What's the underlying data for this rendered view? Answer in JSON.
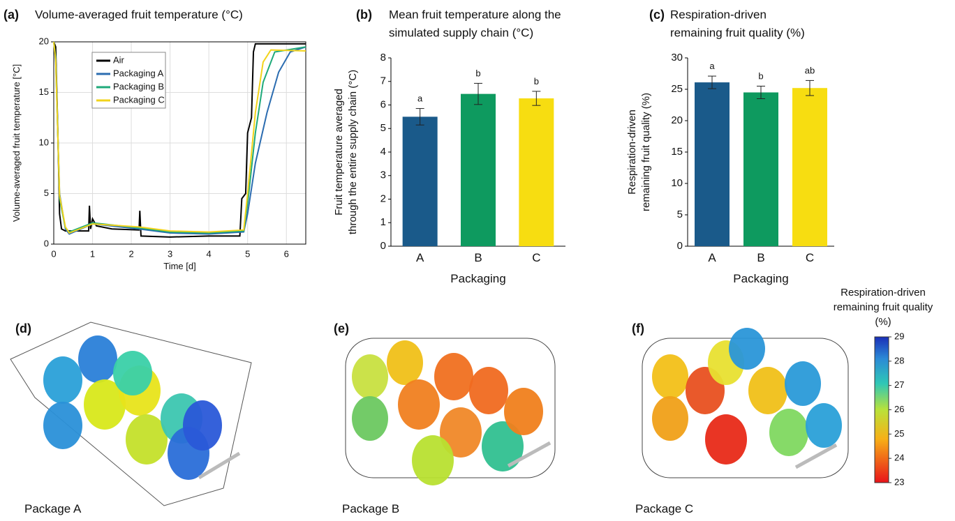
{
  "chart_data": [
    {
      "type": "line",
      "panel": "(a)",
      "title": [
        "Volume-averaged fruit temperature (°C)"
      ],
      "xlabel": "Time [d]",
      "ylabel": [
        "Volume-averaged fruit temperature [°C]"
      ],
      "xlim": [
        0,
        6.5
      ],
      "xticks": [
        0,
        1,
        2,
        3,
        4,
        5,
        6
      ],
      "ylim": [
        0,
        20
      ],
      "yticks": [
        0,
        5,
        10,
        15,
        20
      ],
      "grid": true,
      "legend": "upper left",
      "series": [
        {
          "name": "Air",
          "color": "#000000",
          "x": [
            0,
            0.05,
            0.1,
            0.15,
            0.2,
            0.3,
            0.9,
            0.92,
            0.95,
            1.0,
            1.1,
            1.5,
            2.2,
            2.22,
            2.25,
            3,
            4,
            4.8,
            4.85,
            4.95,
            5.0,
            5.1,
            5.15,
            5.2,
            6.5
          ],
          "values": [
            20,
            19.5,
            12,
            3,
            1.5,
            1.3,
            1.3,
            3.8,
            1.5,
            2.5,
            1.8,
            1.5,
            1.4,
            3.3,
            0.8,
            0.7,
            0.8,
            0.8,
            4.5,
            5,
            11,
            12.5,
            19,
            19.8,
            19.8
          ]
        },
        {
          "name": "Packaging A",
          "color": "#2b6cb0",
          "x": [
            0,
            0.05,
            0.15,
            0.3,
            0.4,
            1,
            2.2,
            3,
            4,
            4.9,
            5.0,
            5.2,
            5.5,
            5.8,
            6.1,
            6.5
          ],
          "values": [
            20,
            18,
            5,
            1.5,
            1.0,
            2,
            1.5,
            1.1,
            1.0,
            1.2,
            3,
            8,
            13,
            17,
            19,
            19.5
          ]
        },
        {
          "name": "Packaging B",
          "color": "#1faa7a",
          "x": [
            0,
            0.05,
            0.15,
            0.3,
            0.4,
            1,
            2.2,
            3,
            4,
            4.9,
            5.0,
            5.2,
            5.4,
            5.7,
            6.5
          ],
          "values": [
            20,
            18.5,
            4.5,
            1.6,
            1.2,
            2.1,
            1.6,
            1.2,
            1.1,
            1.3,
            4,
            11,
            16,
            19,
            19.5
          ]
        },
        {
          "name": "Packaging C",
          "color": "#f2d31b",
          "x": [
            0,
            0.05,
            0.15,
            0.3,
            0.4,
            1,
            2.2,
            3,
            4,
            4.9,
            5.0,
            5.2,
            5.4,
            5.6,
            6.5
          ],
          "values": [
            20,
            18.2,
            4.8,
            1.7,
            1.1,
            2.0,
            1.7,
            1.3,
            1.2,
            1.4,
            5,
            13,
            18,
            19.2,
            19.1
          ]
        }
      ]
    },
    {
      "type": "bar",
      "panel": "(b)",
      "title": [
        "Mean fruit temperature along the",
        "simulated supply chain (°C)"
      ],
      "xlabel": "Packaging",
      "ylabel": [
        "Fruit temperature averaged",
        "through the entire supply chain (°C)"
      ],
      "categories": [
        "A",
        "B",
        "C"
      ],
      "values": [
        5.5,
        6.47,
        6.28
      ],
      "errors": [
        0.35,
        0.45,
        0.3
      ],
      "annotations": [
        "a",
        "b",
        "b"
      ],
      "colors": [
        "#1a5a8a",
        "#0e9a5f",
        "#f7dd11"
      ],
      "ylim": [
        0,
        8
      ],
      "yticks": [
        0,
        1,
        2,
        3,
        4,
        5,
        6,
        7,
        8
      ]
    },
    {
      "type": "bar",
      "panel": "(c)",
      "title": [
        "Respiration-driven",
        "remaining fruit quality (%)"
      ],
      "xlabel": "Packaging",
      "ylabel": [
        "Respiration-driven",
        "remaining fruit quality (%)"
      ],
      "categories": [
        "A",
        "B",
        "C"
      ],
      "values": [
        26.1,
        24.5,
        25.2
      ],
      "errors": [
        1.0,
        1.0,
        1.2
      ],
      "annotations": [
        "a",
        "b",
        "ab"
      ],
      "colors": [
        "#1a5a8a",
        "#0e9a5f",
        "#f7dd11"
      ],
      "ylim": [
        0,
        30
      ],
      "yticks": [
        0,
        5,
        10,
        15,
        20,
        25,
        30
      ]
    }
  ],
  "images": [
    {
      "panel": "(d)",
      "caption": "Package A"
    },
    {
      "panel": "(e)",
      "caption": "Package B"
    },
    {
      "panel": "(f)",
      "caption": "Package C"
    }
  ],
  "colorbar": {
    "title": [
      "Respiration-driven",
      "remaining fruit quality",
      "(%)"
    ],
    "lim": [
      23,
      29
    ],
    "ticks": [
      23,
      24,
      25,
      26,
      27,
      28,
      29
    ]
  }
}
